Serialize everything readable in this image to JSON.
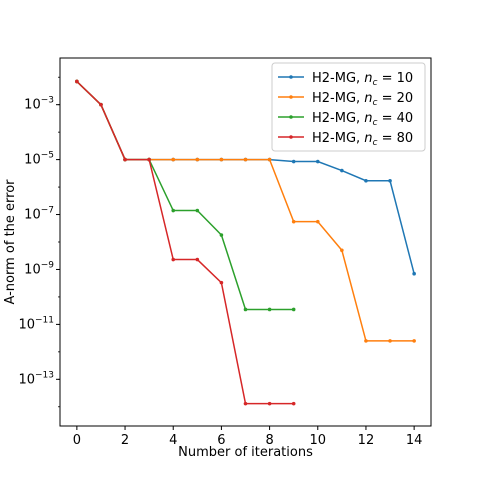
{
  "chart_data": {
    "type": "line",
    "xlabel": "Number of iterations",
    "ylabel": "A-norm of the error",
    "yscale": "log",
    "xlim": [
      -0.7,
      14.7
    ],
    "ylim_log10": [
      -14.7,
      -1.3
    ],
    "xticks": [
      0,
      2,
      4,
      6,
      8,
      10,
      12,
      14
    ],
    "yticks_exp": [
      -3,
      -5,
      -7,
      -9,
      -11,
      -13
    ],
    "grid": false,
    "legend_position": "top-right",
    "series": [
      {
        "name_prefix": "H2-MG, ",
        "name_var": "n",
        "name_sub": "c",
        "name_suffix": " = 10",
        "color": "#1f77b4",
        "x": [
          0,
          1,
          2,
          3,
          4,
          5,
          6,
          7,
          8,
          9,
          10,
          11,
          12,
          13,
          14
        ],
        "y": [
          0.007,
          0.001,
          1e-05,
          1e-05,
          1e-05,
          1e-05,
          1e-05,
          1e-05,
          1e-05,
          8.5e-06,
          8.5e-06,
          4e-06,
          1.7e-06,
          1.7e-06,
          7e-10
        ]
      },
      {
        "name_prefix": "H2-MG, ",
        "name_var": "n",
        "name_sub": "c",
        "name_suffix": " = 20",
        "color": "#ff7f0e",
        "x": [
          0,
          1,
          2,
          3,
          4,
          5,
          6,
          7,
          8,
          9,
          10,
          11,
          12,
          13,
          14
        ],
        "y": [
          0.007,
          0.001,
          1e-05,
          1e-05,
          1e-05,
          1e-05,
          1e-05,
          1e-05,
          1e-05,
          5.5e-08,
          5.5e-08,
          5e-09,
          2.5e-12,
          2.5e-12,
          2.5e-12
        ]
      },
      {
        "name_prefix": "H2-MG, ",
        "name_var": "n",
        "name_sub": "c",
        "name_suffix": " = 40",
        "color": "#2ca02c",
        "x": [
          0,
          1,
          2,
          3,
          4,
          5,
          6,
          7,
          8,
          9
        ],
        "y": [
          0.007,
          0.001,
          1e-05,
          1e-05,
          1.4e-07,
          1.4e-07,
          1.8e-08,
          3.5e-11,
          3.5e-11,
          3.5e-11
        ]
      },
      {
        "name_prefix": "H2-MG, ",
        "name_var": "n",
        "name_sub": "c",
        "name_suffix": " = 80",
        "color": "#d62728",
        "x": [
          0,
          1,
          2,
          3,
          4,
          5,
          6,
          7,
          8,
          9
        ],
        "y": [
          0.007,
          0.001,
          1e-05,
          1e-05,
          2.3e-09,
          2.3e-09,
          3.3e-10,
          1.3e-14,
          1.3e-14,
          1.3e-14
        ]
      }
    ]
  }
}
